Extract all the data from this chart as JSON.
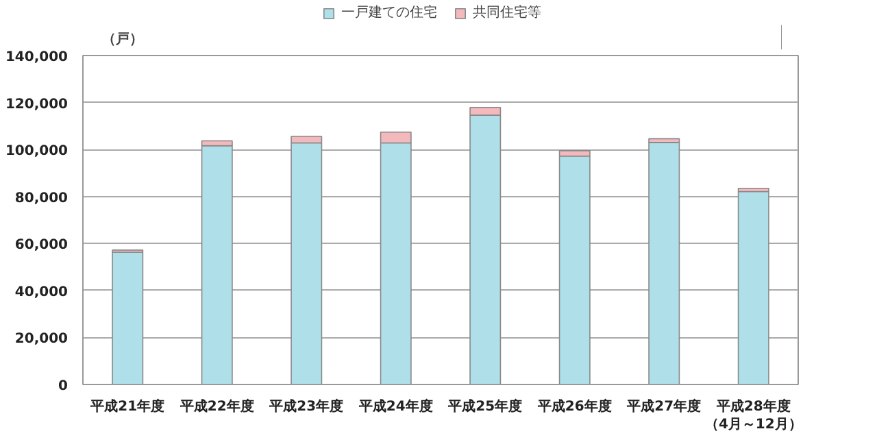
{
  "chart_data": {
    "type": "bar",
    "stacked": true,
    "ylabel": "（戸）",
    "categories": [
      "平成21年度",
      "平成22年度",
      "平成23年度",
      "平成24年度",
      "平成25年度",
      "平成26年度",
      "平成27年度",
      "平成28年度（4月～12月）"
    ],
    "series": [
      {
        "name": "一戸建ての住宅",
        "color": "#afe0e9",
        "values": [
          56300,
          101600,
          102800,
          102800,
          114600,
          97200,
          103000,
          82100
        ]
      },
      {
        "name": "共同住宅等",
        "color": "#f4b9bd",
        "values": [
          900,
          2100,
          2800,
          4600,
          3300,
          2300,
          1600,
          1400
        ]
      }
    ],
    "ylim": [
      0,
      140000
    ],
    "yticks": [
      {
        "value": 0,
        "label": "0"
      },
      {
        "value": 20000,
        "label": "20,000"
      },
      {
        "value": 40000,
        "label": "40,000"
      },
      {
        "value": 60000,
        "label": "60,000"
      },
      {
        "value": 80000,
        "label": "80,000"
      },
      {
        "value": 100000,
        "label": "100,000"
      },
      {
        "value": 120000,
        "label": "120,000"
      },
      {
        "value": 140000,
        "label": "140,000"
      }
    ],
    "grid": "y",
    "legend": "top"
  }
}
